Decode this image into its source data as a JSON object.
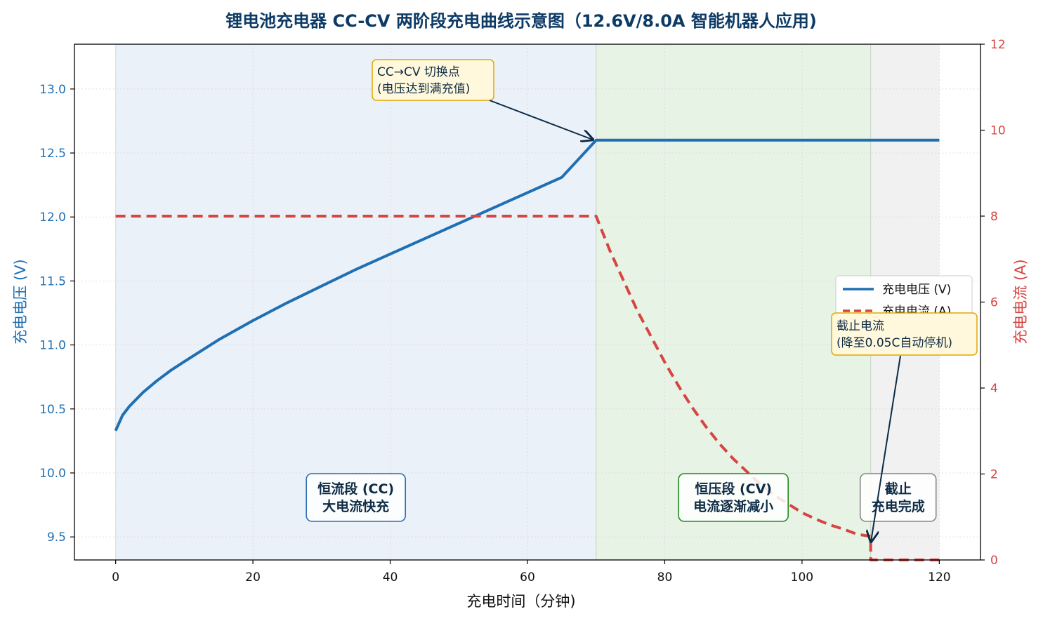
{
  "chart_data": {
    "type": "line",
    "title": "锂电池充电器 CC-CV 两阶段充电曲线示意图（12.6V/8.0A 智能机器人应用)",
    "xlabel": "充电时间（分钟)",
    "ylabel_left": "充电电压 (V)",
    "ylabel_right": "充电电流 (A)",
    "xlim": [
      -6,
      126
    ],
    "ylim_left": [
      9.32,
      13.35
    ],
    "ylim_right": [
      0,
      12
    ],
    "x_ticks": [
      "0",
      "20",
      "40",
      "60",
      "80",
      "100",
      "120"
    ],
    "y_left_ticks": [
      "9.5",
      "10.0",
      "10.5",
      "11.0",
      "11.5",
      "12.0",
      "12.5",
      "13.0"
    ],
    "y_right_ticks": [
      "0",
      "2",
      "4",
      "6",
      "8",
      "10",
      "12"
    ],
    "grid": true,
    "legend_position": "center-right",
    "series": [
      {
        "name": "充电电压 (V)",
        "axis": "left",
        "style": "solid",
        "color": "#1f6fb2",
        "x": [
          0,
          1,
          2,
          4,
          6,
          8,
          10,
          15,
          20,
          25,
          30,
          35,
          40,
          45,
          50,
          55,
          60,
          65,
          70,
          75,
          80,
          85,
          90,
          95,
          100,
          105,
          110,
          115,
          120
        ],
        "y": [
          10.33,
          10.45,
          10.52,
          10.63,
          10.72,
          10.8,
          10.87,
          11.04,
          11.19,
          11.33,
          11.46,
          11.59,
          11.71,
          11.83,
          11.95,
          12.07,
          12.19,
          12.31,
          12.6,
          12.6,
          12.6,
          12.6,
          12.6,
          12.6,
          12.6,
          12.6,
          12.6,
          12.6,
          12.6
        ]
      },
      {
        "name": "充电电流 (A)",
        "axis": "right",
        "style": "dashed",
        "color": "#d64541",
        "x": [
          0,
          10,
          20,
          30,
          40,
          50,
          60,
          70,
          72,
          74,
          76,
          78,
          80,
          82,
          84,
          86,
          88,
          90,
          92,
          94,
          96,
          98,
          100,
          102,
          104,
          106,
          108,
          110,
          110.01,
          115,
          120
        ],
        "y": [
          8,
          8,
          8,
          8,
          8,
          8,
          8,
          8,
          7.2,
          6.5,
          5.8,
          5.2,
          4.6,
          4.05,
          3.55,
          3.1,
          2.7,
          2.35,
          2.05,
          1.75,
          1.5,
          1.3,
          1.1,
          0.95,
          0.82,
          0.72,
          0.6,
          0.55,
          0,
          0,
          0
        ]
      }
    ],
    "phases": [
      {
        "label_line1": "恒流段 (CC)",
        "label_line2": "大电流快充",
        "x_start": 0,
        "x_end": 70,
        "fill": "#e6eef8",
        "border": "#2b6cb0"
      },
      {
        "label_line1": "恒压段 (CV)",
        "label_line2": "电流逐渐减小",
        "x_start": 70,
        "x_end": 110,
        "fill": "#e3f1e1",
        "border": "#228b22"
      },
      {
        "label_line1": "截止",
        "label_line2": "充电完成",
        "x_start": 110,
        "x_end": 120,
        "fill": "#eeeeee",
        "border": "#888888"
      }
    ],
    "annotations": [
      {
        "line1": "CC→CV 切换点",
        "line2": "(电压达到满充值)",
        "target_x": 70,
        "target_y": 12.6
      },
      {
        "line1": "截止电流",
        "line2": "(降至0.05C自动停机)",
        "target_x": 110,
        "target_y_right": 0.4
      }
    ]
  }
}
